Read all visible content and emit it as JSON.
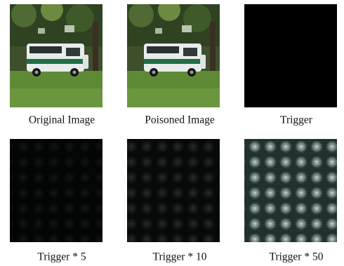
{
  "figure": {
    "panels": [
      {
        "caption": "Original Image"
      },
      {
        "caption": "Poisoned Image"
      },
      {
        "caption": "Trigger"
      },
      {
        "caption": "Trigger * 5"
      },
      {
        "caption": "Trigger * 10"
      },
      {
        "caption": "Trigger * 50"
      }
    ]
  }
}
